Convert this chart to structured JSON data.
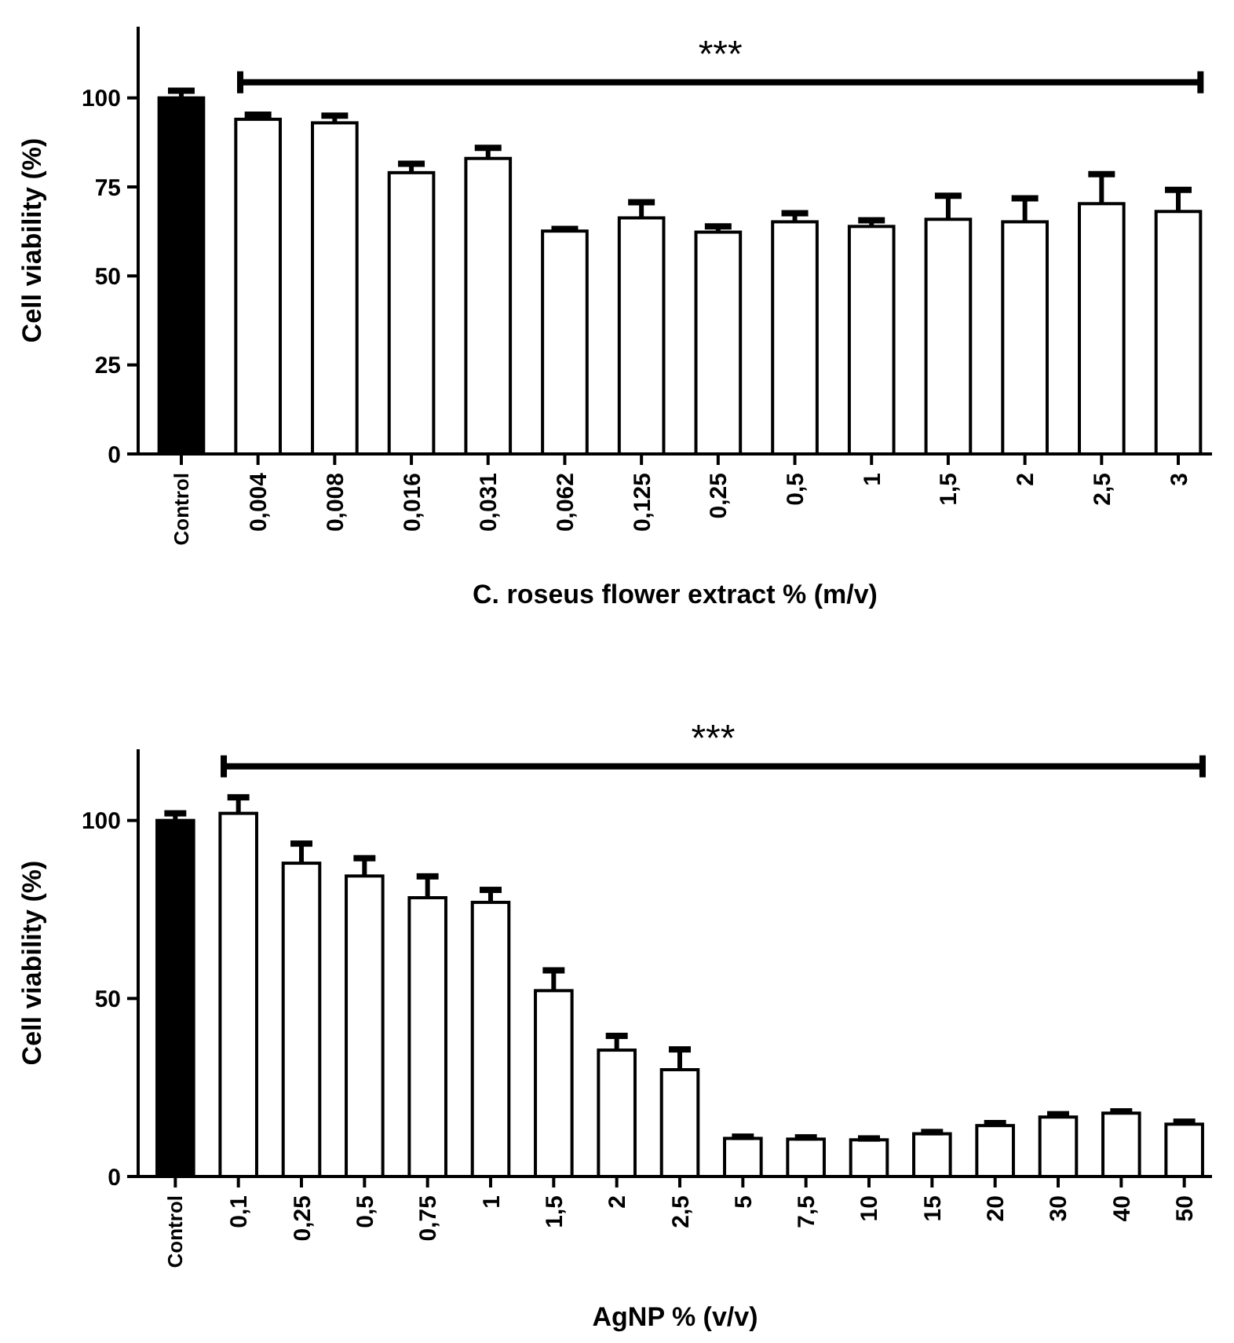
{
  "chart_data": [
    {
      "type": "bar",
      "xlabel": "C. roseus flower extract % (m/v)",
      "ylabel": "Cell viability (%)",
      "categories": [
        "Control",
        "0,004",
        "0,008",
        "0,016",
        "0,031",
        "0,062",
        "0,125",
        "0,25",
        "0,5",
        "1",
        "1,5",
        "2",
        "2,5",
        "3"
      ],
      "values": [
        100,
        94,
        93,
        79,
        83,
        62.6,
        66.3,
        62.3,
        65.2,
        63.9,
        65.9,
        65.2,
        70.3,
        68.1
      ],
      "errors": [
        2,
        1.3,
        2,
        2.5,
        3,
        0.6,
        4.4,
        1.6,
        2.4,
        1.7,
        6.6,
        6.6,
        8.3,
        6.1
      ],
      "colors": [
        "#000000",
        "#ffffff",
        "#ffffff",
        "#ffffff",
        "#ffffff",
        "#ffffff",
        "#ffffff",
        "#ffffff",
        "#ffffff",
        "#ffffff",
        "#ffffff",
        "#ffffff",
        "#ffffff",
        "#ffffff"
      ],
      "ylim": [
        0,
        120
      ],
      "yticks": [
        0,
        25,
        50,
        75,
        100
      ],
      "grid": false,
      "annotations": [
        "***"
      ]
    },
    {
      "type": "bar",
      "xlabel": "AgNP % (v/v)",
      "ylabel": "Cell viability (%)",
      "categories": [
        "Control",
        "0,1",
        "0,25",
        "0,5",
        "0,75",
        "1",
        "1,5",
        "2",
        "2,5",
        "5",
        "7,5",
        "10",
        "15",
        "20",
        "30",
        "40",
        "50"
      ],
      "values": [
        100,
        102,
        88,
        84.4,
        78.3,
        77,
        52.2,
        35.5,
        30,
        10.7,
        10.5,
        10.3,
        12,
        14.3,
        16.7,
        17.8,
        14.7
      ],
      "errors": [
        2,
        4.5,
        5.5,
        5,
        6,
        3.5,
        5.7,
        4,
        5.7,
        0.5,
        0.5,
        0.4,
        0.5,
        0.7,
        0.8,
        0.5,
        0.7
      ],
      "colors": [
        "#000000",
        "#ffffff",
        "#ffffff",
        "#ffffff",
        "#ffffff",
        "#ffffff",
        "#ffffff",
        "#ffffff",
        "#ffffff",
        "#ffffff",
        "#ffffff",
        "#ffffff",
        "#ffffff",
        "#ffffff",
        "#ffffff",
        "#ffffff",
        "#ffffff"
      ],
      "ylim": [
        0,
        120
      ],
      "yticks": [
        0,
        50,
        100
      ],
      "grid": false,
      "annotations": [
        "***"
      ]
    }
  ]
}
